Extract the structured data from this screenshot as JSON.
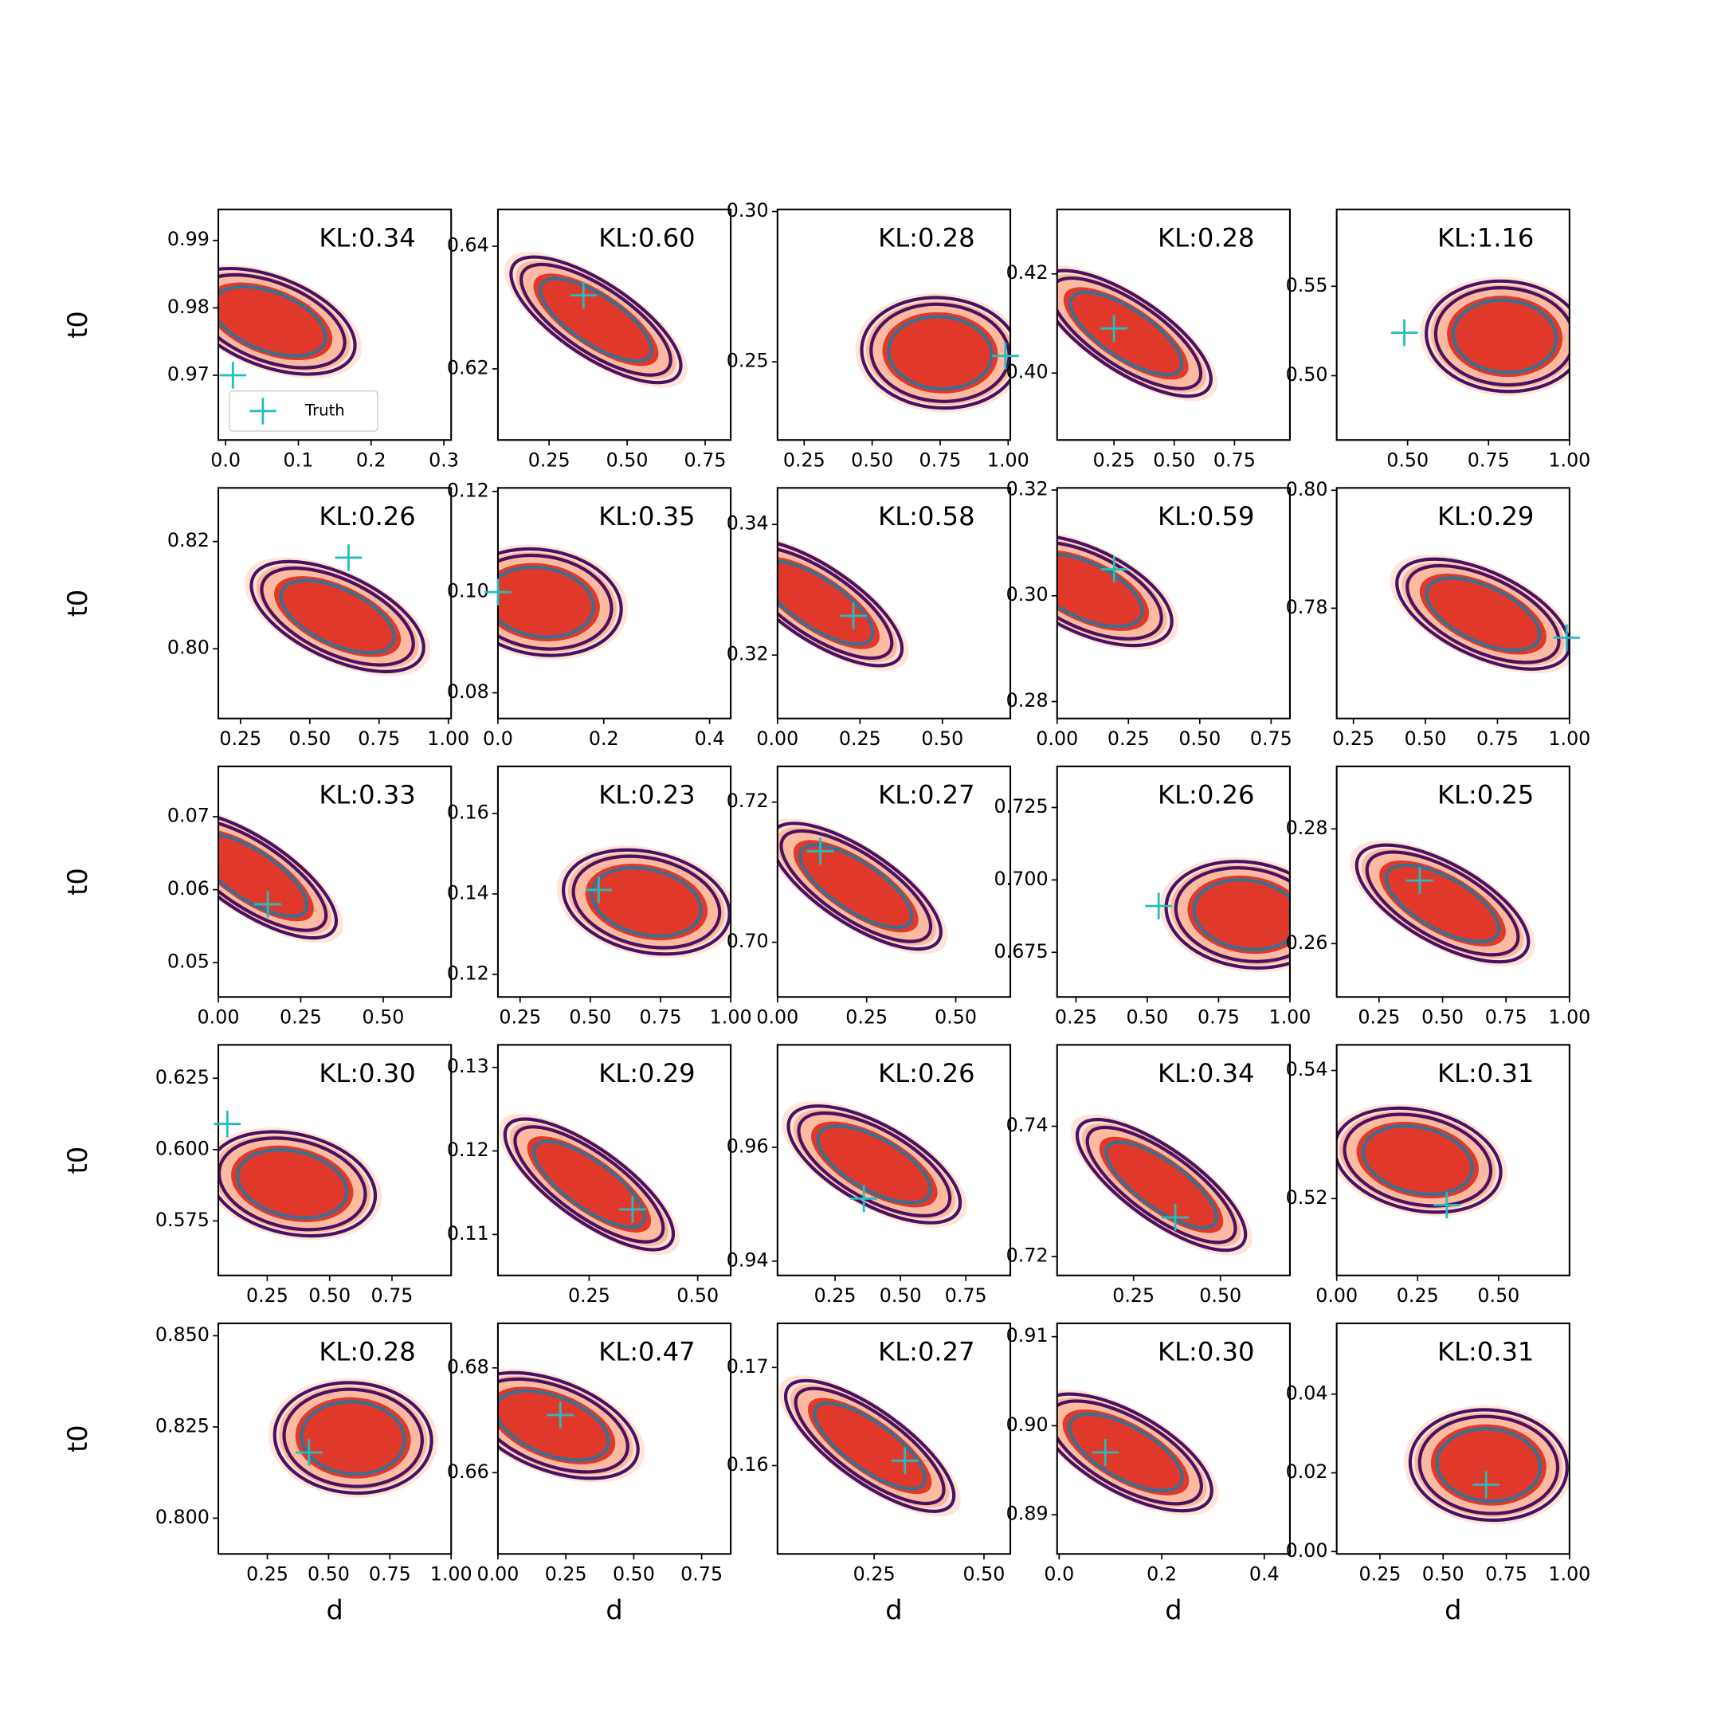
{
  "chart_data": [
    {
      "type": "contour",
      "annotation": "KL:0.34",
      "ylabel": "t0",
      "xlim": [
        -0.01,
        0.31
      ],
      "xticks": [
        {
          "value": 0,
          "label": "0.0"
        },
        0.1,
        0.2,
        0.3
      ],
      "ylim": [
        0.9604,
        0.9946
      ],
      "yticks": [
        0.97,
        0.98,
        0.99
      ],
      "mode": {
        "x": 0.06,
        "y": 0.978
      },
      "corr": -0.5,
      "truth": {
        "name": "Truth",
        "x": 0.01,
        "y": 0.97,
        "color": "#22bdbd"
      },
      "legend": "lower left"
    },
    {
      "type": "contour",
      "annotation": "KL:0.60",
      "xlim": [
        0.086,
        0.832
      ],
      "xticks": [
        0.25,
        {
          "value": 0.5,
          "label": "0.50"
        },
        0.75
      ],
      "ylim": [
        0.6084,
        0.646
      ],
      "yticks": [
        0.62,
        0.64
      ],
      "mode": {
        "x": 0.4,
        "y": 0.628
      },
      "corr": -0.8,
      "truth": {
        "x": 0.36,
        "y": 0.632,
        "color": "#22bdbd"
      }
    },
    {
      "type": "contour",
      "annotation": "KL:0.28",
      "xlim": [
        0.152,
        1.008
      ],
      "xticks": [
        0.25,
        {
          "value": 0.5,
          "label": "0.50"
        },
        0.75,
        {
          "value": 1,
          "label": "1.00"
        }
      ],
      "ylim": [
        0.224,
        0.3007
      ],
      "yticks": [
        0.25,
        {
          "value": 0.3,
          "label": "0.30"
        }
      ],
      "mode": {
        "x": 0.75,
        "y": 0.253
      },
      "corr": -0.1,
      "truth": {
        "x": 0.99,
        "y": 0.252,
        "color": "#22bdbd"
      }
    },
    {
      "type": "contour",
      "annotation": "KL:0.28",
      "xlim": [
        0.014,
        0.98
      ],
      "xticks": [
        0.25,
        {
          "value": 0.5,
          "label": "0.50"
        },
        0.75
      ],
      "ylim": [
        0.3865,
        0.433
      ],
      "yticks": [
        {
          "value": 0.4,
          "label": "0.40"
        },
        0.42
      ],
      "mode": {
        "x": 0.3,
        "y": 0.408
      },
      "corr": -0.8,
      "truth": {
        "x": 0.25,
        "y": 0.409,
        "color": "#22bdbd"
      }
    },
    {
      "type": "contour",
      "annotation": "KL:1.16",
      "xlim": [
        0.281,
        1.0
      ],
      "xticks": [
        {
          "value": 0.5,
          "label": "0.50"
        },
        0.75,
        {
          "value": 1,
          "label": "1.00"
        }
      ],
      "ylim": [
        0.464,
        0.593
      ],
      "yticks": [
        {
          "value": 0.5,
          "label": "0.50"
        },
        0.55
      ],
      "mode": {
        "x": 0.8,
        "y": 0.522
      },
      "corr": -0.1,
      "truth": {
        "x": 0.49,
        "y": 0.524,
        "color": "#22bdbd"
      }
    },
    {
      "type": "contour",
      "annotation": "KL:0.26",
      "ylabel": "t0",
      "xlim": [
        0.17,
        1.01
      ],
      "xticks": [
        0.25,
        {
          "value": 0.5,
          "label": "0.50"
        },
        0.75,
        {
          "value": 1,
          "label": "1.00"
        }
      ],
      "ylim": [
        0.787,
        0.83
      ],
      "yticks": [
        {
          "value": 0.8,
          "label": "0.80"
        },
        0.82
      ],
      "mode": {
        "x": 0.6,
        "y": 0.806
      },
      "corr": -0.6,
      "truth": {
        "x": 0.64,
        "y": 0.817,
        "color": "#22bdbd"
      }
    },
    {
      "type": "contour",
      "annotation": "KL:0.35",
      "xlim": [
        0,
        0.44
      ],
      "xticks": [
        {
          "value": 0,
          "label": "0.0"
        },
        0.2,
        0.4
      ],
      "ylim": [
        0.0749,
        0.1207
      ],
      "yticks": [
        0.08,
        {
          "value": 0.1,
          "label": "0.10"
        },
        0.12
      ],
      "mode": {
        "x": 0.08,
        "y": 0.098
      },
      "corr": -0.2,
      "truth": {
        "x": 0.0,
        "y": 0.1,
        "color": "#22bdbd"
      }
    },
    {
      "type": "contour",
      "annotation": "KL:0.58",
      "xlim": [
        0,
        0.706
      ],
      "xticks": [
        {
          "value": 0,
          "label": "0.00"
        },
        0.25,
        {
          "value": 0.5,
          "label": "0.50"
        }
      ],
      "ylim": [
        0.3103,
        0.3456
      ],
      "yticks": [
        0.32,
        0.34
      ],
      "mode": {
        "x": 0.12,
        "y": 0.328
      },
      "corr": -0.8,
      "truth": {
        "x": 0.23,
        "y": 0.326,
        "color": "#22bdbd"
      }
    },
    {
      "type": "contour",
      "annotation": "KL:0.59",
      "xlim": [
        0,
        0.816
      ],
      "xticks": [
        {
          "value": 0,
          "label": "0.00"
        },
        0.25,
        {
          "value": 0.5,
          "label": "0.50"
        },
        0.75
      ],
      "ylim": [
        0.2768,
        0.3204
      ],
      "yticks": [
        0.28,
        {
          "value": 0.3,
          "label": "0.30"
        },
        0.32
      ],
      "mode": {
        "x": 0.1,
        "y": 0.301
      },
      "corr": -0.6,
      "truth": {
        "x": 0.2,
        "y": 0.305,
        "color": "#22bdbd"
      }
    },
    {
      "type": "contour",
      "annotation": "KL:0.29",
      "xlim": [
        0.192,
        1.0
      ],
      "xticks": [
        0.25,
        {
          "value": 0.5,
          "label": "0.50"
        },
        0.75,
        {
          "value": 1,
          "label": "1.00"
        }
      ],
      "ylim": [
        0.7613,
        0.8004
      ],
      "yticks": [
        0.78,
        {
          "value": 0.8,
          "label": "0.80"
        }
      ],
      "mode": {
        "x": 0.7,
        "y": 0.779
      },
      "corr": -0.6,
      "truth": {
        "x": 0.99,
        "y": 0.775,
        "color": "#22bdbd"
      }
    },
    {
      "type": "contour",
      "annotation": "KL:0.33",
      "ylabel": "t0",
      "xlim": [
        0,
        0.706
      ],
      "xticks": [
        {
          "value": 0,
          "label": "0.00"
        },
        0.25,
        {
          "value": 0.5,
          "label": "0.50"
        }
      ],
      "ylim": [
        0.0453,
        0.0769
      ],
      "yticks": [
        0.05,
        0.06,
        0.07
      ],
      "mode": {
        "x": 0.1,
        "y": 0.062
      },
      "corr": -0.8,
      "truth": {
        "x": 0.15,
        "y": 0.058,
        "color": "#22bdbd"
      }
    },
    {
      "type": "contour",
      "annotation": "KL:0.23",
      "xlim": [
        0.171,
        1.0
      ],
      "xticks": [
        0.25,
        {
          "value": 0.5,
          "label": "0.50"
        },
        0.75,
        {
          "value": 1,
          "label": "1.00"
        }
      ],
      "ylim": [
        0.1144,
        0.1717
      ],
      "yticks": [
        0.12,
        0.14,
        0.16
      ],
      "mode": {
        "x": 0.7,
        "y": 0.138
      },
      "corr": -0.3,
      "truth": {
        "x": 0.53,
        "y": 0.141,
        "color": "#22bdbd"
      }
    },
    {
      "type": "contour",
      "annotation": "KL:0.27",
      "xlim": [
        0,
        0.653
      ],
      "xticks": [
        {
          "value": 0,
          "label": "0.00"
        },
        0.25,
        {
          "value": 0.5,
          "label": "0.50"
        }
      ],
      "ylim": [
        0.6922,
        0.7251
      ],
      "yticks": [
        {
          "value": 0.7,
          "label": "0.70"
        },
        0.72
      ],
      "mode": {
        "x": 0.22,
        "y": 0.708
      },
      "corr": -0.8,
      "truth": {
        "x": 0.12,
        "y": 0.713,
        "color": "#22bdbd"
      }
    },
    {
      "type": "contour",
      "annotation": "KL:0.26",
      "xlim": [
        0.184,
        1.0
      ],
      "xticks": [
        0.25,
        {
          "value": 0.5,
          "label": "0.50"
        },
        0.75,
        {
          "value": 1,
          "label": "1.00"
        }
      ],
      "ylim": [
        0.6596,
        0.7392
      ],
      "yticks": [
        0.675,
        {
          "value": 0.7,
          "label": "0.700"
        },
        0.725
      ],
      "mode": {
        "x": 0.85,
        "y": 0.688
      },
      "corr": -0.2,
      "truth": {
        "x": 0.54,
        "y": 0.691,
        "color": "#22bdbd"
      }
    },
    {
      "type": "contour",
      "annotation": "KL:0.25",
      "xlim": [
        0.083,
        1.0
      ],
      "xticks": [
        0.25,
        {
          "value": 0.5,
          "label": "0.50"
        },
        0.75,
        {
          "value": 1,
          "label": "1.00"
        }
      ],
      "ylim": [
        0.2507,
        0.2909
      ],
      "yticks": [
        0.26,
        0.28
      ],
      "mode": {
        "x": 0.5,
        "y": 0.267
      },
      "corr": -0.7,
      "truth": {
        "x": 0.41,
        "y": 0.271,
        "color": "#22bdbd"
      }
    },
    {
      "type": "contour",
      "annotation": "KL:0.30",
      "ylabel": "t0",
      "xlim": [
        0.054,
        0.987
      ],
      "xticks": [
        0.25,
        {
          "value": 0.5,
          "label": "0.50"
        },
        0.75
      ],
      "ylim": [
        0.5559,
        0.6367
      ],
      "yticks": [
        0.575,
        {
          "value": 0.6,
          "label": "0.600"
        },
        0.625
      ],
      "mode": {
        "x": 0.35,
        "y": 0.588
      },
      "corr": -0.3,
      "truth": {
        "x": 0.09,
        "y": 0.609,
        "color": "#22bdbd"
      }
    },
    {
      "type": "contour",
      "annotation": "KL:0.29",
      "xlim": [
        0.04,
        0.576
      ],
      "xticks": [
        0.25,
        {
          "value": 0.5,
          "label": "0.50"
        }
      ],
      "ylim": [
        0.1051,
        0.1327
      ],
      "yticks": [
        0.11,
        0.12,
        0.13
      ],
      "mode": {
        "x": 0.25,
        "y": 0.116
      },
      "corr": -0.85,
      "truth": {
        "x": 0.35,
        "y": 0.113,
        "color": "#22bdbd"
      }
    },
    {
      "type": "contour",
      "annotation": "KL:0.26",
      "xlim": [
        0.03,
        0.92
      ],
      "xticks": [
        0.25,
        {
          "value": 0.5,
          "label": "0.50"
        },
        0.75
      ],
      "ylim": [
        0.9375,
        0.978
      ],
      "yticks": [
        0.94,
        0.96
      ],
      "mode": {
        "x": 0.4,
        "y": 0.957
      },
      "corr": -0.7,
      "truth": {
        "x": 0.36,
        "y": 0.951,
        "color": "#22bdbd"
      }
    },
    {
      "type": "contour",
      "annotation": "KL:0.34",
      "xlim": [
        0.03,
        0.7
      ],
      "xticks": [
        0.25,
        {
          "value": 0.5,
          "label": "0.50"
        }
      ],
      "ylim": [
        0.7171,
        0.7525
      ],
      "yticks": [
        0.72,
        0.74
      ],
      "mode": {
        "x": 0.33,
        "y": 0.731
      },
      "corr": -0.85,
      "truth": {
        "x": 0.37,
        "y": 0.726,
        "color": "#22bdbd"
      }
    },
    {
      "type": "contour",
      "annotation": "KL:0.31",
      "xlim": [
        0,
        0.719
      ],
      "xticks": [
        {
          "value": 0,
          "label": "0.00"
        },
        0.25,
        {
          "value": 0.5,
          "label": "0.50"
        }
      ],
      "ylim": [
        0.508,
        0.544
      ],
      "yticks": [
        0.52,
        0.54
      ],
      "mode": {
        "x": 0.25,
        "y": 0.526
      },
      "corr": -0.3,
      "truth": {
        "x": 0.34,
        "y": 0.519,
        "color": "#22bdbd"
      }
    },
    {
      "type": "contour",
      "annotation": "KL:0.28",
      "ylabel": "t0",
      "xlabel": "d",
      "xlim": [
        0.05,
        1.0
      ],
      "xticks": [
        0.25,
        {
          "value": 0.5,
          "label": "0.50"
        },
        0.75,
        {
          "value": 1,
          "label": "1.00"
        }
      ],
      "ylim": [
        0.7902,
        0.8534
      ],
      "yticks": [
        {
          "value": 0.8,
          "label": "0.800"
        },
        0.825,
        {
          "value": 0.85,
          "label": "0.850"
        }
      ],
      "mode": {
        "x": 0.6,
        "y": 0.822
      },
      "corr": -0.1,
      "truth": {
        "x": 0.42,
        "y": 0.818,
        "color": "#22bdbd"
      }
    },
    {
      "type": "contour",
      "annotation": "KL:0.47",
      "xlabel": "d",
      "xlim": [
        0,
        0.857
      ],
      "xticks": [
        {
          "value": 0,
          "label": "0.00"
        },
        0.25,
        {
          "value": 0.5,
          "label": "0.50"
        },
        0.75
      ],
      "ylim": [
        0.6445,
        0.6885
      ],
      "yticks": [
        0.66,
        0.68
      ],
      "mode": {
        "x": 0.2,
        "y": 0.669
      },
      "corr": -0.5,
      "truth": {
        "x": 0.23,
        "y": 0.671,
        "color": "#22bdbd"
      }
    },
    {
      "type": "contour",
      "annotation": "KL:0.27",
      "xlabel": "d",
      "xlim": [
        0.03,
        0.56
      ],
      "xticks": [
        0.25,
        {
          "value": 0.5,
          "label": "0.50"
        }
      ],
      "ylim": [
        0.151,
        0.1745
      ],
      "yticks": [
        0.16,
        0.17
      ],
      "mode": {
        "x": 0.24,
        "y": 0.162
      },
      "corr": -0.85,
      "truth": {
        "x": 0.32,
        "y": 0.1605,
        "color": "#22bdbd"
      }
    },
    {
      "type": "contour",
      "annotation": "KL:0.30",
      "xlabel": "d",
      "xlim": [
        -0.004,
        0.45
      ],
      "xticks": [
        {
          "value": 0,
          "label": "0.0"
        },
        0.2,
        0.4
      ],
      "ylim": [
        0.8856,
        0.9115
      ],
      "yticks": [
        0.89,
        {
          "value": 0.9,
          "label": "0.90"
        },
        0.91
      ],
      "mode": {
        "x": 0.13,
        "y": 0.897
      },
      "corr": -0.7,
      "truth": {
        "x": 0.09,
        "y": 0.897,
        "color": "#22bdbd"
      }
    },
    {
      "type": "contour",
      "annotation": "KL:0.31",
      "xlabel": "d",
      "xlim": [
        0.079,
        1.0
      ],
      "xticks": [
        0.25,
        {
          "value": 0.5,
          "label": "0.50"
        },
        0.75,
        {
          "value": 1,
          "label": "1.00"
        }
      ],
      "ylim": [
        -0.0006,
        0.058
      ],
      "yticks": [
        {
          "value": 0,
          "label": "0.00"
        },
        0.02,
        0.04
      ],
      "mode": {
        "x": 0.68,
        "y": 0.022
      },
      "corr": -0.1,
      "truth": {
        "x": 0.67,
        "y": 0.017,
        "color": "#22bdbd"
      }
    }
  ]
}
